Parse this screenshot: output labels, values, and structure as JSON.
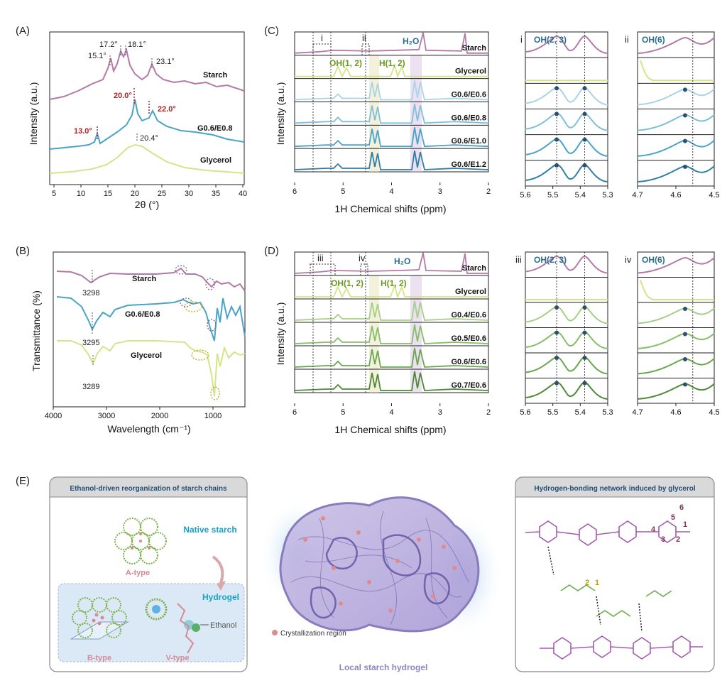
{
  "panels": {
    "A": "(A)",
    "B": "(B)",
    "C": "(C)",
    "D": "(D)",
    "E": "(E)"
  },
  "panelA": {
    "ylabel": "Intensity (a.u.)",
    "xlabel": "2θ (°)",
    "xticks": [
      "5",
      "10",
      "15",
      "20",
      "25",
      "30",
      "35",
      "40"
    ],
    "series": [
      {
        "name": "Starch",
        "color": "#b37aa8"
      },
      {
        "name": "G0.6/E0.8",
        "color": "#4aa3c8"
      },
      {
        "name": "Glycerol",
        "color": "#d6e38a"
      }
    ],
    "peaks_starch": [
      "15.1°",
      "17.2°",
      "18.1°",
      "23.1°"
    ],
    "peaks_g": [
      "13.0°",
      "20.0°",
      "22.0°"
    ],
    "peaks_gly": [
      "20.4°"
    ]
  },
  "panelB": {
    "ylabel": "Transmittance (%)",
    "xlabel": "Wavelength (cm⁻¹)",
    "xticks": [
      "4000",
      "3000",
      "2000",
      "1000"
    ],
    "series": [
      {
        "name": "Starch",
        "color": "#b37aa8"
      },
      {
        "name": "G0.6/E0.8",
        "color": "#4aa3c8"
      },
      {
        "name": "Glycerol",
        "color": "#d6e38a"
      }
    ],
    "peaks": [
      "3298",
      "3295",
      "3289"
    ]
  },
  "panelC": {
    "ylabel": "Intensity (a.u.)",
    "xlabel": "1H Chemical shifts (ppm)",
    "xticks": [
      "6",
      "5",
      "4",
      "3",
      "2"
    ],
    "rows": [
      "Starch",
      "Glycerol",
      "G0.6/E0.6",
      "G0.6/E0.8",
      "G0.6/E1.0",
      "G0.6/E1.2"
    ],
    "colors": [
      "#b37aa8",
      "#d6e38a",
      "#a8d4e6",
      "#7fbfd9",
      "#4aa3c8",
      "#2f7fa3"
    ],
    "h2o": "H₂O",
    "oh12": "OH(1, 2)",
    "h12": "H(1, 2)",
    "roman_i": "i",
    "roman_ii": "ii",
    "inset_i_title": "OH(2, 3)",
    "inset_ii_title": "OH(6)",
    "inset_i_ticks": [
      "5.6",
      "5.5",
      "5.4",
      "5.3"
    ],
    "inset_ii_ticks": [
      "4.7",
      "4.6",
      "4.5"
    ]
  },
  "panelD": {
    "ylabel": "Intensity (a.u.)",
    "xlabel": "1H Chemical shifts (ppm)",
    "xticks": [
      "6",
      "5",
      "4",
      "3",
      "2"
    ],
    "rows": [
      "Starch",
      "Glycerol",
      "G0.4/E0.6",
      "G0.5/E0.6",
      "G0.6/E0.6",
      "G0.7/E0.6"
    ],
    "colors": [
      "#b37aa8",
      "#d6e38a",
      "#a5cf86",
      "#86bd68",
      "#6aa64e",
      "#4d8a36"
    ],
    "h2o": "H₂O",
    "oh12": "OH(1, 2)",
    "h12": "H(1, 2)",
    "roman_iii": "iii",
    "roman_iv": "iv",
    "inset_iii_title": "OH(2, 3)",
    "inset_iv_title": "OH(6)",
    "inset_iii_ticks": [
      "5.6",
      "5.5",
      "5.4",
      "5.3"
    ],
    "inset_iv_ticks": [
      "4.7",
      "4.6",
      "4.5"
    ]
  },
  "panelE": {
    "left_title": "Ethanol-driven reorganization of starch chains",
    "native": "Native starch",
    "a_type": "A-type",
    "hydrogel": "Hydrogel",
    "b_type": "B-type",
    "v_type": "V-type",
    "ethanol": "Ethanol",
    "crystal": "Crystallization region",
    "center_caption": "Local starch hydrogel",
    "right_title": "Hydrogen-bonding network induced by glycerol",
    "n1": "1",
    "n2": "2",
    "n3": "3",
    "n4": "4",
    "n5": "5",
    "n6": "6",
    "g1": "1",
    "g2": "2"
  }
}
